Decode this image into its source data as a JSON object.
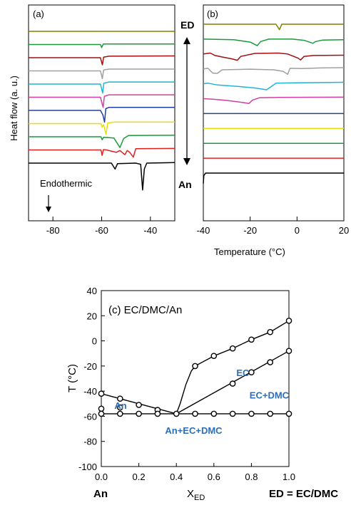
{
  "chart_data": [
    {
      "type": "line",
      "panel_label": "(a)",
      "ylabel": "Heat flow (a. u.)",
      "xlim": [
        -90,
        -30
      ],
      "x_ticks": [
        "-80",
        "-60",
        "-40"
      ],
      "annotation": "Endothermic",
      "series": [
        {
          "color": "#808000",
          "points": [
            [
              -90,
              0.0
            ],
            [
              -30,
              0.0
            ]
          ]
        },
        {
          "color": "#1a9a3a",
          "points": [
            [
              -90,
              0.0
            ],
            [
              -60.5,
              0.0
            ],
            [
              -60,
              -1.0
            ],
            [
              -59.3,
              0.2
            ],
            [
              -58,
              0.2
            ],
            [
              -30,
              0.2
            ]
          ]
        },
        {
          "color": "#a01010",
          "points": [
            [
              -90,
              0.0
            ],
            [
              -60.5,
              0.0
            ],
            [
              -59.7,
              -2.4
            ],
            [
              -59.2,
              0.2
            ],
            [
              -57,
              0.5
            ],
            [
              -30,
              0.6
            ]
          ]
        },
        {
          "color": "#a0a0a0",
          "points": [
            [
              -90,
              0.0
            ],
            [
              -60.5,
              0.0
            ],
            [
              -59.7,
              -2.6
            ],
            [
              -59.2,
              0.3
            ],
            [
              -57,
              0.6
            ],
            [
              -30,
              0.6
            ]
          ]
        },
        {
          "color": "#20b4d8",
          "points": [
            [
              -90,
              0.0
            ],
            [
              -60.5,
              0.0
            ],
            [
              -59.6,
              -3.0
            ],
            [
              -59.1,
              0.3
            ],
            [
              -57,
              0.7
            ],
            [
              -30,
              0.7
            ]
          ]
        },
        {
          "color": "#d040a0",
          "points": [
            [
              -90,
              0.0
            ],
            [
              -60.5,
              0.0
            ],
            [
              -59.4,
              -3.4
            ],
            [
              -58.9,
              0.3
            ],
            [
              -57,
              0.8
            ],
            [
              -30,
              0.8
            ]
          ]
        },
        {
          "color": "#2040a0",
          "points": [
            [
              -90,
              0.0
            ],
            [
              -60.5,
              0.0
            ],
            [
              -59.5,
              -1.5
            ],
            [
              -58.8,
              -3.9
            ],
            [
              -58.3,
              0.6
            ],
            [
              -57,
              1.0
            ],
            [
              -30,
              1.0
            ]
          ]
        },
        {
          "color": "#e8e000",
          "points": [
            [
              -90,
              0.0
            ],
            [
              -60.3,
              0.0
            ],
            [
              -59.8,
              -1.2
            ],
            [
              -59.2,
              -0.4
            ],
            [
              -58.2,
              -3.6
            ],
            [
              -57.5,
              0.2
            ],
            [
              -55,
              0.5
            ],
            [
              -30,
              0.5
            ]
          ]
        },
        {
          "color": "#1a9a3a",
          "points": [
            [
              -90,
              0.0
            ],
            [
              -60.3,
              0.0
            ],
            [
              -59.8,
              -1.0
            ],
            [
              -59.2,
              -0.2
            ],
            [
              -55,
              -0.4
            ],
            [
              -52.5,
              -3.6
            ],
            [
              -51,
              -0.6
            ],
            [
              -49,
              0.4
            ],
            [
              -30,
              0.5
            ]
          ]
        },
        {
          "color": "#e02020",
          "points": [
            [
              -90,
              0.0
            ],
            [
              -60.3,
              0.0
            ],
            [
              -59.8,
              -1.8
            ],
            [
              -59.3,
              0.1
            ],
            [
              -58,
              0.0
            ],
            [
              -54,
              -0.8
            ],
            [
              -52.5,
              -0.2
            ],
            [
              -50.5,
              -1.6
            ],
            [
              -49.5,
              -0.2
            ],
            [
              -48.5,
              -0.8
            ],
            [
              -47,
              -2.4
            ],
            [
              -46,
              0.4
            ],
            [
              -30,
              0.5
            ]
          ]
        },
        {
          "color": "#000000",
          "points": [
            [
              -90,
              0.0
            ],
            [
              -60,
              0.0
            ],
            [
              -56,
              0.0
            ],
            [
              -54.5,
              -2.0
            ],
            [
              -53.5,
              -0.2
            ],
            [
              -46,
              0.0
            ],
            [
              -44,
              -0.4
            ],
            [
              -43.2,
              -9.0
            ],
            [
              -42.5,
              -2.0
            ],
            [
              -41.5,
              0.0
            ],
            [
              -30,
              0.2
            ]
          ]
        }
      ]
    },
    {
      "type": "line",
      "panel_label": "(b)",
      "xlim": [
        -40,
        20
      ],
      "x_ticks": [
        "-40",
        "-20",
        "0",
        "20"
      ],
      "xlabel": "Temperature (°C)",
      "side_labels": {
        "top": "ED",
        "bottom": "An"
      },
      "series": [
        {
          "color": "#808000",
          "points": [
            [
              -40,
              0.0
            ],
            [
              -9,
              0.0
            ],
            [
              -7.5,
              -1.8
            ],
            [
              -6.5,
              0.0
            ],
            [
              20,
              0.0
            ]
          ]
        },
        {
          "color": "#1a9a3a",
          "points": [
            [
              -40,
              0.0
            ],
            [
              -27,
              -0.2
            ],
            [
              -20,
              -1.0
            ],
            [
              -17,
              -2.2
            ],
            [
              -15.5,
              -0.8
            ],
            [
              -12,
              0.0
            ],
            [
              -2,
              0.0
            ],
            [
              3,
              -0.4
            ],
            [
              6.8,
              -1.4
            ],
            [
              8,
              -0.8
            ],
            [
              11,
              -0.3
            ],
            [
              20,
              -0.2
            ]
          ]
        },
        {
          "color": "#a01010",
          "points": [
            [
              -40,
              0.0
            ],
            [
              -37,
              0.3
            ],
            [
              -35,
              -0.5
            ],
            [
              -32,
              -1.0
            ],
            [
              -28,
              -1.6
            ],
            [
              -25.5,
              -2.1
            ],
            [
              -24,
              -0.8
            ],
            [
              -18,
              0.2
            ],
            [
              -8,
              0.3
            ],
            [
              -4,
              0.0
            ],
            [
              0.5,
              -1.4
            ],
            [
              1.5,
              -2.0
            ],
            [
              3,
              -0.8
            ],
            [
              7,
              -0.5
            ],
            [
              20,
              -0.4
            ]
          ]
        },
        {
          "color": "#a0a0a0",
          "points": [
            [
              -40,
              0.0
            ],
            [
              -38,
              0.2
            ],
            [
              -36,
              -1.4
            ],
            [
              -34,
              -1.5
            ],
            [
              -32,
              -0.3
            ],
            [
              -25,
              -0.2
            ],
            [
              -20,
              -0.1
            ],
            [
              -10,
              -0.3
            ],
            [
              -6,
              -0.8
            ],
            [
              -4,
              -1.8
            ],
            [
              -3,
              0.2
            ],
            [
              2,
              0.1
            ],
            [
              10,
              0.3
            ],
            [
              20,
              0.4
            ]
          ]
        },
        {
          "color": "#20b4d8",
          "points": [
            [
              -40,
              0.0
            ],
            [
              -38,
              0.2
            ],
            [
              -34,
              -0.4
            ],
            [
              -25,
              -0.9
            ],
            [
              -18,
              -1.4
            ],
            [
              -13,
              -2.0
            ],
            [
              -11.5,
              -1.2
            ],
            [
              -9,
              0.2
            ],
            [
              0,
              0.3
            ],
            [
              20,
              0.5
            ]
          ]
        },
        {
          "color": "#d040a0",
          "points": [
            [
              -40,
              0.0
            ],
            [
              -36,
              -0.2
            ],
            [
              -30,
              -0.6
            ],
            [
              -24,
              -1.2
            ],
            [
              -20.5,
              -1.6
            ],
            [
              -19,
              -0.5
            ],
            [
              -16,
              0.3
            ],
            [
              -8,
              0.4
            ],
            [
              20,
              0.5
            ]
          ]
        },
        {
          "color": "#2040a0",
          "points": [
            [
              -40,
              0.0
            ],
            [
              20,
              0.0
            ]
          ]
        },
        {
          "color": "#e8e000",
          "points": [
            [
              -40,
              0.0
            ],
            [
              20,
              0.0
            ]
          ]
        },
        {
          "color": "#1a9a3a",
          "points": [
            [
              -40,
              0.0
            ],
            [
              20,
              0.0
            ]
          ]
        },
        {
          "color": "#e02020",
          "points": [
            [
              -40,
              0.0
            ],
            [
              20,
              0.0
            ]
          ]
        },
        {
          "color": "#000000",
          "points": [
            [
              -40,
              -3.5
            ],
            [
              -39.8,
              -0.8
            ],
            [
              -39,
              0.0
            ],
            [
              20,
              0.0
            ]
          ]
        }
      ]
    },
    {
      "type": "scatter",
      "title": "(c) EC/DMC/An",
      "xlabel_main": "X",
      "xlabel_sub": "ED",
      "ylabel": "T (°C)",
      "xlim": [
        0,
        1
      ],
      "ylim": [
        -100,
        40
      ],
      "x_ticks": [
        "0.0",
        "0.2",
        "0.4",
        "0.6",
        "0.8",
        "1.0"
      ],
      "y_ticks": [
        "40",
        "20",
        "0",
        "-20",
        "-40",
        "-60",
        "-80",
        "-100"
      ],
      "bottom_labels": {
        "left": "An",
        "right": "ED = EC/DMC"
      },
      "region_labels": [
        {
          "text": "An",
          "x": 0.07,
          "y": -54
        },
        {
          "text": "EC",
          "x": 0.72,
          "y": -28
        },
        {
          "text": "EC+DMC",
          "x": 0.79,
          "y": -46
        },
        {
          "text": "An+EC+DMC",
          "x": 0.34,
          "y": -74
        }
      ],
      "lines": [
        {
          "name": "An liquidus",
          "points": [
            [
              0,
              -42
            ],
            [
              0.4,
              -58
            ]
          ]
        },
        {
          "name": "eutectic",
          "points": [
            [
              0,
              -58
            ],
            [
              1,
              -58
            ]
          ]
        },
        {
          "name": "EC+DMC boundary",
          "points": [
            [
              0.4,
              -58
            ],
            [
              1,
              -8
            ]
          ]
        },
        {
          "name": "EC liquidus",
          "points": [
            [
              0.4,
              -58
            ],
            [
              0.42,
              -50
            ],
            [
              0.45,
              -35
            ],
            [
              0.48,
              -24
            ],
            [
              0.5,
              -20
            ],
            [
              0.6,
              -12
            ],
            [
              0.7,
              -6
            ],
            [
              0.8,
              1
            ],
            [
              0.9,
              7
            ],
            [
              1,
              16
            ]
          ]
        }
      ],
      "points": [
        [
          0.0,
          -42
        ],
        [
          0.1,
          -46
        ],
        [
          0.2,
          -51
        ],
        [
          0.3,
          -55
        ],
        [
          0.4,
          -58
        ],
        [
          0.0,
          -54
        ],
        [
          0.1,
          -53
        ],
        [
          0.0,
          -58
        ],
        [
          0.1,
          -58
        ],
        [
          0.2,
          -58
        ],
        [
          0.3,
          -58
        ],
        [
          0.5,
          -58
        ],
        [
          0.6,
          -58
        ],
        [
          0.7,
          -58
        ],
        [
          0.8,
          -58
        ],
        [
          0.9,
          -58
        ],
        [
          1.0,
          -58
        ],
        [
          0.5,
          -20
        ],
        [
          0.6,
          -12
        ],
        [
          0.7,
          -6
        ],
        [
          0.8,
          1
        ],
        [
          0.9,
          7
        ],
        [
          1.0,
          16
        ],
        [
          0.7,
          -34
        ],
        [
          0.8,
          -25
        ],
        [
          0.9,
          -17
        ],
        [
          1.0,
          -8
        ]
      ]
    }
  ]
}
